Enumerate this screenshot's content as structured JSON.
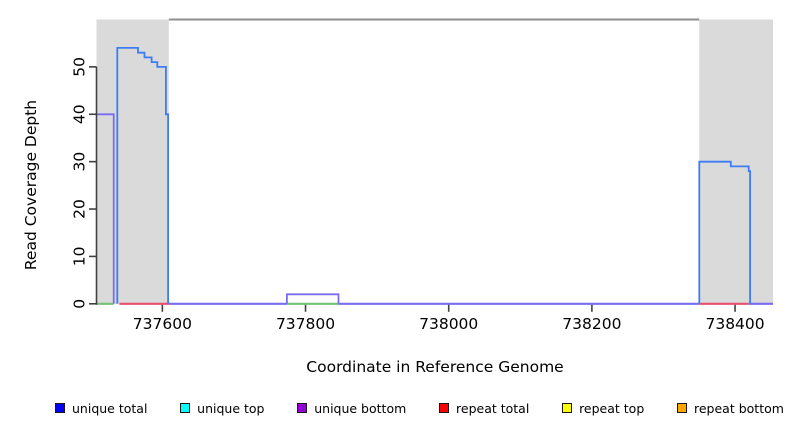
{
  "chart_data": {
    "type": "line",
    "title": "",
    "xlabel": "Coordinate in Reference Genome",
    "ylabel": "Read Coverage Depth",
    "xlim": [
      737508,
      738453
    ],
    "ylim": [
      0,
      60
    ],
    "x_ticks": [
      737600,
      737800,
      738000,
      738200,
      738400
    ],
    "y_ticks": [
      0,
      10,
      20,
      30,
      40,
      50
    ],
    "grid": false,
    "axis_color": "#404040",
    "background_regions": [
      {
        "name": "left-gray-region",
        "from": 737508,
        "to": 737609,
        "color": "#dadada"
      },
      {
        "name": "right-gray-region",
        "from": 738350,
        "to": 738453,
        "color": "#dadada"
      }
    ],
    "overlay_line": {
      "name": "between-regions-top-line",
      "y": 60,
      "from": 737609,
      "to": 738350,
      "color": "#8f8f8f"
    },
    "series": [
      {
        "name": "unique total",
        "color": "#3d7cf4",
        "segments": [
          [
            [
              737537,
              0
            ],
            [
              737537,
              54
            ],
            [
              737566,
              54
            ],
            [
              737566,
              53
            ],
            [
              737575,
              53
            ],
            [
              737575,
              52
            ],
            [
              737585,
              52
            ],
            [
              737585,
              51
            ],
            [
              737593,
              51
            ],
            [
              737593,
              50
            ],
            [
              737605,
              50
            ],
            [
              737605,
              40
            ],
            [
              737608,
              40
            ],
            [
              737608,
              0
            ]
          ],
          [
            [
              738350,
              0
            ],
            [
              738350,
              30
            ],
            [
              738394,
              30
            ],
            [
              738394,
              29
            ],
            [
              738419,
              29
            ],
            [
              738419,
              28
            ],
            [
              738421,
              28
            ],
            [
              738421,
              0
            ]
          ]
        ]
      },
      {
        "name": "unique bottom",
        "color": "#7a6cf0",
        "segments": [
          [
            [
              737508,
              40
            ],
            [
              737532,
              40
            ],
            [
              737532,
              0
            ]
          ],
          [
            [
              737774,
              0
            ],
            [
              737774,
              2
            ],
            [
              737846,
              2
            ],
            [
              737846,
              0
            ]
          ]
        ]
      }
    ],
    "baseline_segments": [
      {
        "color_name": "green",
        "color": "#74c276",
        "from": 737508,
        "to": 737532
      },
      {
        "color_name": "red",
        "color": "#e8506e",
        "from": 737540,
        "to": 737609
      },
      {
        "color_name": "purple",
        "color": "#7a6cf0",
        "from": 737609,
        "to": 737774
      },
      {
        "color_name": "green",
        "color": "#74c276",
        "from": 737774,
        "to": 737846
      },
      {
        "color_name": "purple",
        "color": "#7a6cf0",
        "from": 737846,
        "to": 738350
      },
      {
        "color_name": "red",
        "color": "#e8506e",
        "from": 738350,
        "to": 738419
      },
      {
        "color_name": "purple",
        "color": "#7a6cf0",
        "from": 738419,
        "to": 738453
      }
    ],
    "legend": {
      "position": "bottom",
      "items": [
        {
          "label": "unique total",
          "color": "#0000ff"
        },
        {
          "label": "unique top",
          "color": "#00ffff"
        },
        {
          "label": "unique bottom",
          "color": "#9400d3"
        },
        {
          "label": "repeat total",
          "color": "#ff0000"
        },
        {
          "label": "repeat top",
          "color": "#ffff00"
        },
        {
          "label": "repeat bottom",
          "color": "#ffa500"
        }
      ]
    }
  }
}
